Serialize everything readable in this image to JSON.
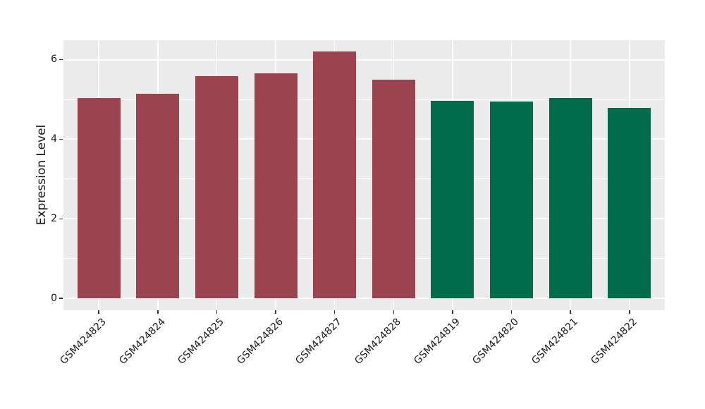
{
  "figure": {
    "background": "#FFFFFF",
    "panel_background": "#EBEBEB",
    "gridline_color": "#FFFFFF",
    "tick_mark_color": "#333333",
    "text_color": "#1A1A1A"
  },
  "chart_data": {
    "type": "bar",
    "title": "",
    "xlabel": "",
    "ylabel": "Expression Level",
    "categories": [
      "GSM424823",
      "GSM424824",
      "GSM424825",
      "GSM424826",
      "GSM424827",
      "GSM424828",
      "GSM424819",
      "GSM424820",
      "GSM424821",
      "GSM424822"
    ],
    "values": [
      5.03,
      5.15,
      5.58,
      5.66,
      6.2,
      5.49,
      4.97,
      4.94,
      5.03,
      4.78
    ],
    "bar_colors": [
      "#9B4450",
      "#9B4450",
      "#9B4450",
      "#9B4450",
      "#9B4450",
      "#9B4450",
      "#026B4B",
      "#026B4B",
      "#026B4B",
      "#026B4B"
    ],
    "series": [
      {
        "name": "group-maroon",
        "color": "#9B4450",
        "categories": [
          "GSM424823",
          "GSM424824",
          "GSM424825",
          "GSM424826",
          "GSM424827",
          "GSM424828"
        ]
      },
      {
        "name": "group-green",
        "color": "#026B4B",
        "categories": [
          "GSM424819",
          "GSM424820",
          "GSM424821",
          "GSM424822"
        ]
      }
    ],
    "yticks": [
      0,
      2,
      4,
      6
    ],
    "y_minor_ticks": [
      1,
      3,
      5
    ],
    "ylim": [
      -0.3,
      6.49
    ],
    "x_tick_rotation_deg": 45,
    "legend": "none",
    "grid": "horizontal major+minor, vertical major at category centers",
    "bar_width_fraction": 0.73
  }
}
